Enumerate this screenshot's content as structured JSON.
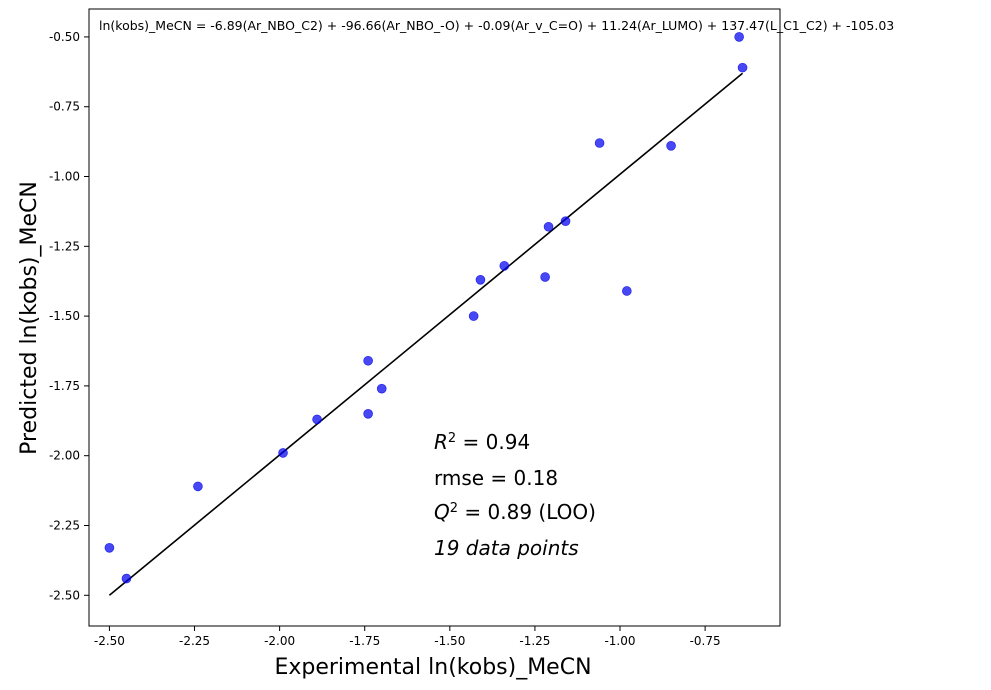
{
  "chart_data": {
    "type": "scatter",
    "title": "",
    "equation": "ln(kobs)_MeCN = -6.89(Ar_NBO_C2) + -96.66(Ar_NBO_-O) + -0.09(Ar_v_C=O) + 11.24(Ar_LUMO) + 137.47(L_C1_C2) + -105.03",
    "xlabel": "Experimental ln(kobs)_MeCN",
    "ylabel": "Predicted ln(kobs)_MeCN",
    "xlim": [
      -2.56,
      -0.53
    ],
    "ylim": [
      -2.61,
      -0.4
    ],
    "xticks": [
      -2.5,
      -2.25,
      -2.0,
      -1.75,
      -1.5,
      -1.25,
      -1.0,
      -0.75
    ],
    "xtick_labels": [
      "-2.50",
      "-2.25",
      "-2.00",
      "-1.75",
      "-1.50",
      "-1.25",
      "-1.00",
      "-0.75"
    ],
    "yticks": [
      -0.5,
      -0.75,
      -1.0,
      -1.25,
      -1.5,
      -1.75,
      -2.0,
      -2.25,
      -2.5
    ],
    "ytick_labels": [
      "-0.50",
      "-0.75",
      "-1.00",
      "-1.25",
      "-1.50",
      "-1.75",
      "-2.00",
      "-2.25",
      "-2.50"
    ],
    "grid": false,
    "point_color": "#0000ee",
    "line_color": "#000000",
    "points": [
      {
        "x": -2.5,
        "y": -2.33
      },
      {
        "x": -2.45,
        "y": -2.44
      },
      {
        "x": -2.24,
        "y": -2.11
      },
      {
        "x": -1.99,
        "y": -1.99
      },
      {
        "x": -1.89,
        "y": -1.87
      },
      {
        "x": -1.74,
        "y": -1.66
      },
      {
        "x": -1.74,
        "y": -1.85
      },
      {
        "x": -1.7,
        "y": -1.76
      },
      {
        "x": -1.43,
        "y": -1.5
      },
      {
        "x": -1.41,
        "y": -1.37
      },
      {
        "x": -1.34,
        "y": -1.32
      },
      {
        "x": -1.22,
        "y": -1.36
      },
      {
        "x": -1.21,
        "y": -1.18
      },
      {
        "x": -1.16,
        "y": -1.16
      },
      {
        "x": -1.06,
        "y": -0.88
      },
      {
        "x": -0.98,
        "y": -1.41
      },
      {
        "x": -0.85,
        "y": -0.89
      },
      {
        "x": -0.65,
        "y": -0.5
      },
      {
        "x": -0.64,
        "y": -0.61
      }
    ],
    "fit_line": {
      "x": [
        -2.5,
        -0.64
      ],
      "y": [
        -2.5,
        -0.63
      ]
    },
    "stats": {
      "r2_value": "0.94",
      "rmse": "rmse = 0.18",
      "q2_value": "0.89 (LOO)",
      "n_points": "19 data points"
    }
  }
}
